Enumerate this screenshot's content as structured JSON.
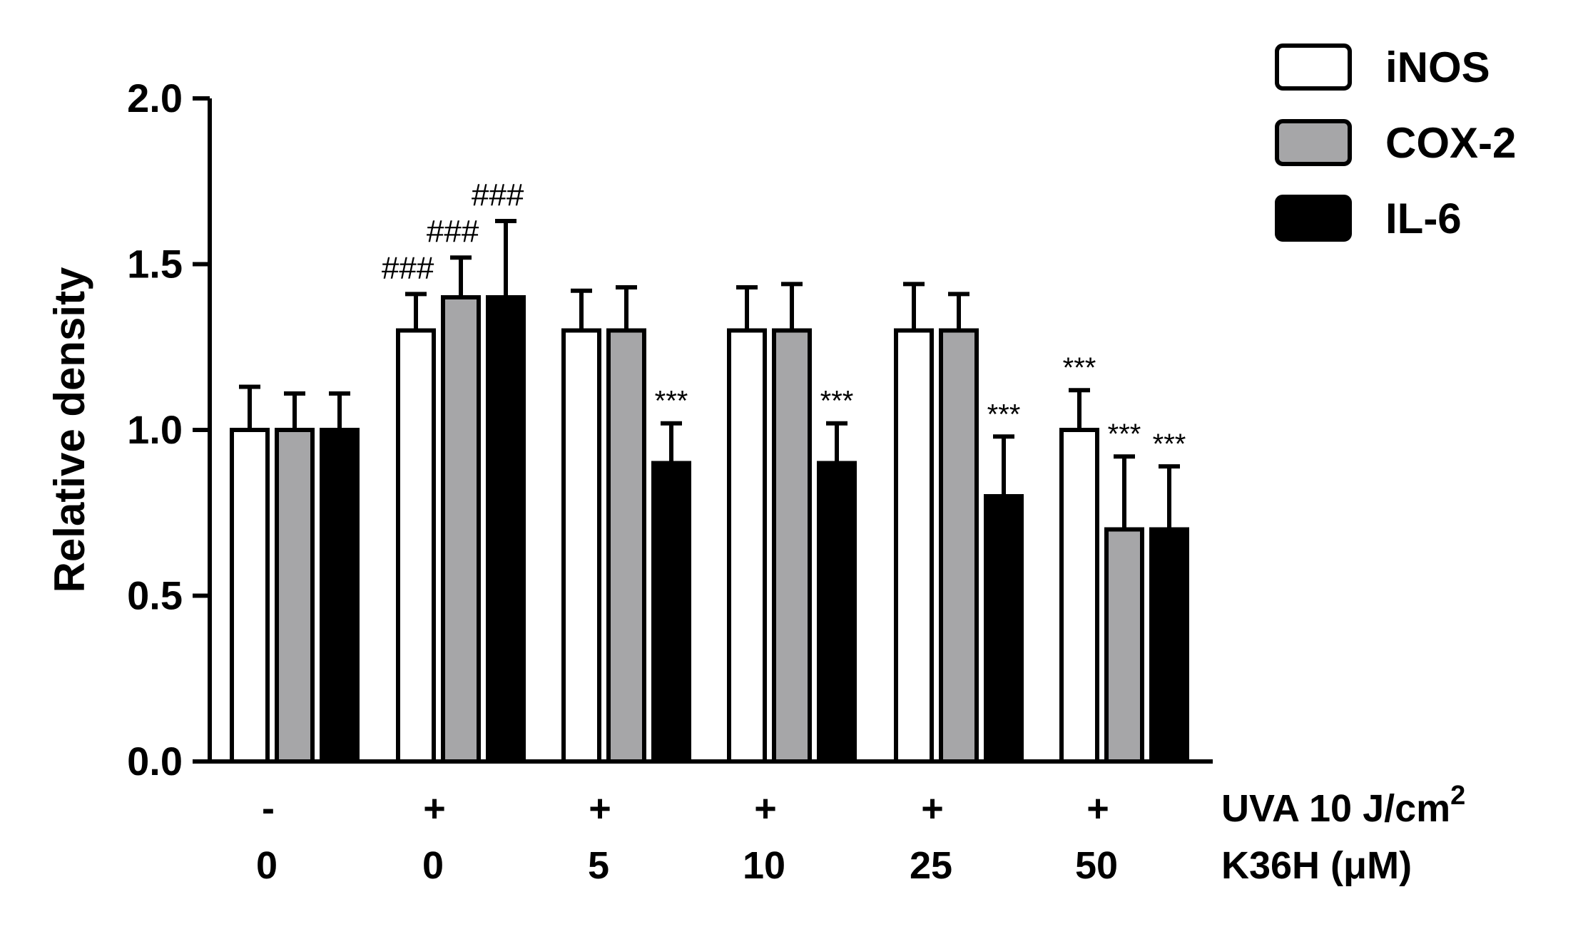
{
  "chart_data": {
    "type": "bar",
    "ylabel": "Relative density",
    "xlabel": "",
    "ylim": [
      0,
      2.0
    ],
    "yticks": [
      "0.0",
      "0.5",
      "1.0",
      "1.5",
      "2.0"
    ],
    "grid": false,
    "legend_position": "top-right",
    "categories": [
      "0",
      "0",
      "5",
      "10",
      "25",
      "50"
    ],
    "conditions": {
      "uva_label": "UVA 10 J/cm",
      "uva_superscript": "2",
      "uva_values": [
        "-",
        "+",
        "+",
        "+",
        "+",
        "+"
      ],
      "k36h_label": "K36H (μM)",
      "k36h_values": [
        "0",
        "0",
        "5",
        "10",
        "25",
        "50"
      ]
    },
    "series": [
      {
        "name": "iNOS",
        "fill": "#ffffff",
        "values": [
          1.0,
          1.3,
          1.3,
          1.3,
          1.3,
          1.0
        ],
        "errors": [
          0.13,
          0.11,
          0.12,
          0.13,
          0.14,
          0.12
        ],
        "annotations": [
          "",
          "###",
          "",
          "",
          "",
          "***"
        ]
      },
      {
        "name": "COX-2",
        "fill": "#a6a6a8",
        "values": [
          1.0,
          1.4,
          1.3,
          1.3,
          1.3,
          0.7
        ],
        "errors": [
          0.11,
          0.12,
          0.13,
          0.14,
          0.11,
          0.22
        ],
        "annotations": [
          "",
          "###",
          "",
          "",
          "",
          "***"
        ]
      },
      {
        "name": "IL-6",
        "fill": "#000000",
        "values": [
          1.0,
          1.4,
          0.9,
          0.9,
          0.8,
          0.7
        ],
        "errors": [
          0.11,
          0.23,
          0.12,
          0.12,
          0.18,
          0.19
        ],
        "annotations": [
          "",
          "###",
          "***",
          "***",
          "***",
          "***"
        ]
      }
    ]
  }
}
